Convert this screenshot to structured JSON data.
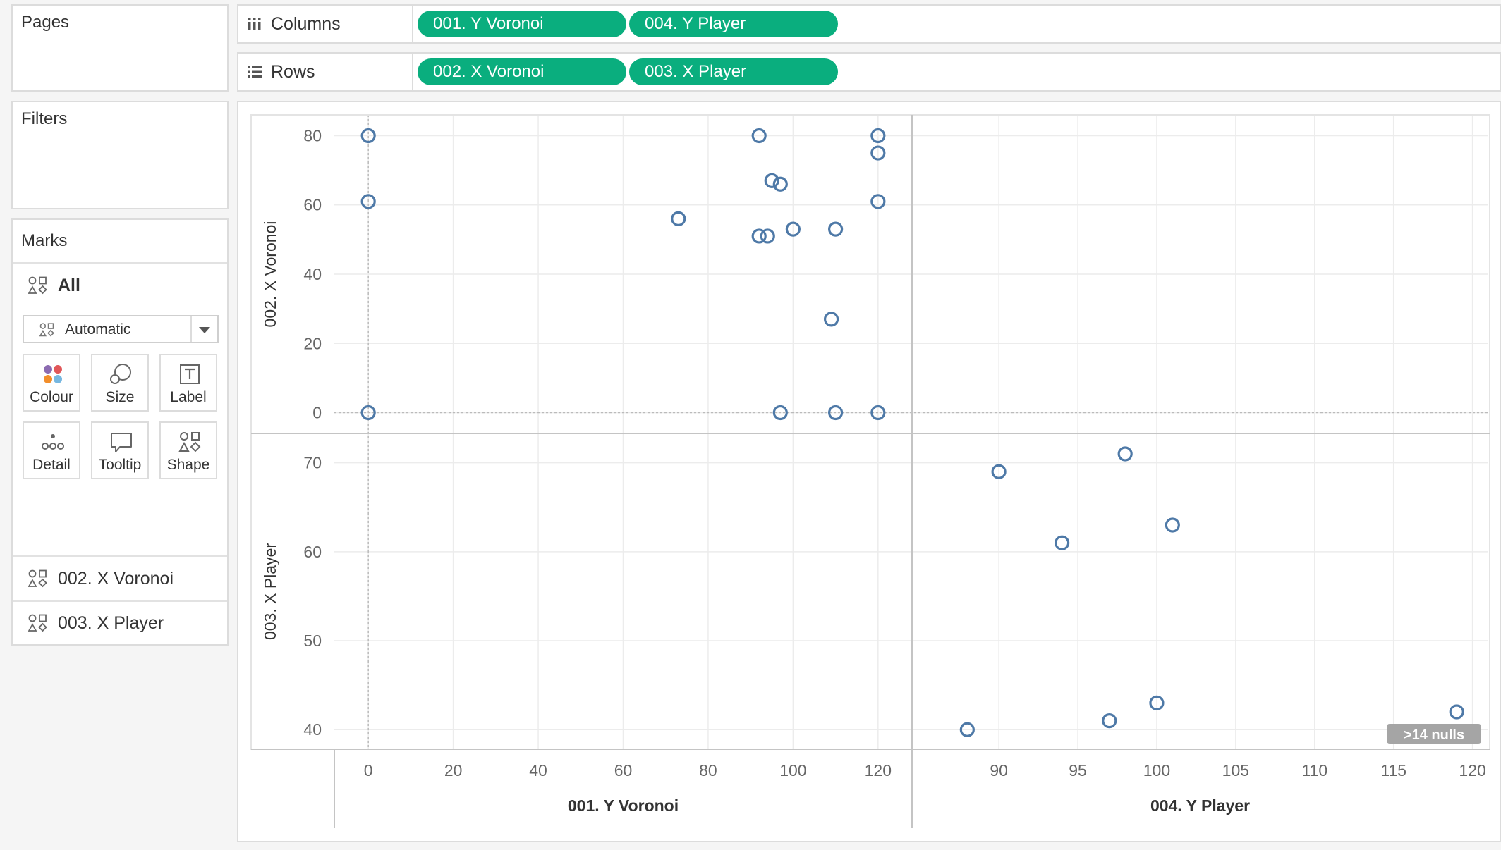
{
  "shelves": {
    "pages": "Pages",
    "filters": "Filters",
    "columns": {
      "label": "Columns",
      "pills": [
        "001. Y Voronoi",
        "004. Y Player"
      ]
    },
    "rows": {
      "label": "Rows",
      "pills": [
        "002. X Voronoi",
        "003. X Player"
      ]
    }
  },
  "marks": {
    "title": "Marks",
    "all_label": "All",
    "mark_type": "Automatic",
    "cards": [
      "Colour",
      "Size",
      "Label",
      "Detail",
      "Tooltip",
      "Shape"
    ],
    "layers": [
      "002. X Voronoi",
      "003. X Player"
    ]
  },
  "colors": {
    "pill": "#0aae7e",
    "mark": "#4e79a7",
    "null_badge": "#a5a5a5"
  },
  "chart_data": [
    {
      "type": "scatter",
      "xlabel": "001. Y Voronoi",
      "ylabel": "002. X Voronoi",
      "xlim": [
        -8,
        128
      ],
      "ylim": [
        -6,
        86
      ],
      "xticks": [
        0,
        20,
        40,
        60,
        80,
        100,
        120
      ],
      "yticks": [
        0,
        20,
        40,
        60,
        80
      ],
      "points": [
        [
          0,
          80
        ],
        [
          0,
          61
        ],
        [
          0,
          0
        ],
        [
          73,
          56
        ],
        [
          92,
          80
        ],
        [
          95,
          67
        ],
        [
          97,
          66
        ],
        [
          92,
          51
        ],
        [
          94,
          51
        ],
        [
          100,
          53
        ],
        [
          110,
          53
        ],
        [
          109,
          27
        ],
        [
          97,
          0
        ],
        [
          110,
          0
        ],
        [
          120,
          80
        ],
        [
          120,
          75
        ],
        [
          120,
          61
        ],
        [
          120,
          0
        ]
      ]
    },
    {
      "type": "scatter",
      "xlabel": "004. Y Player",
      "ylabel": "003. X Player",
      "xlim": [
        84.5,
        121
      ],
      "ylim": [
        37.8,
        73.3
      ],
      "xticks": [
        90,
        95,
        100,
        105,
        110,
        115,
        120
      ],
      "yticks": [
        40,
        50,
        60,
        70
      ],
      "points": [
        [
          88,
          40
        ],
        [
          90,
          69
        ],
        [
          94,
          61
        ],
        [
          97,
          41
        ],
        [
          98,
          71
        ],
        [
          100,
          43
        ],
        [
          101,
          63
        ],
        [
          119,
          42
        ]
      ],
      "null_indicator": ">14 nulls"
    }
  ]
}
